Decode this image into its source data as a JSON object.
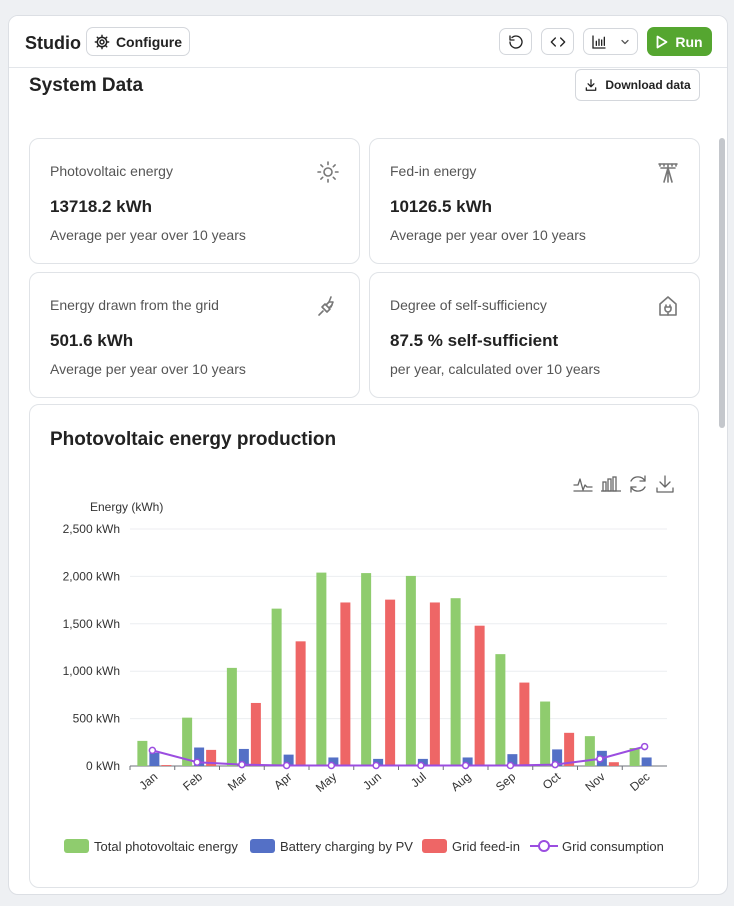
{
  "topbar": {
    "title": "Studio",
    "configure_label": "Configure",
    "run_label": "Run",
    "icons": {
      "configure": "gear-icon",
      "reset": "refresh-icon",
      "code": "code-icon",
      "chart": "bar-chart-icon",
      "dropdown": "chevron-down-icon",
      "run": "play-icon"
    }
  },
  "section": {
    "title": "System Data",
    "download_label": "Download data"
  },
  "cards": [
    {
      "label": "Photovoltaic energy",
      "value": "13718.2 kWh",
      "sub": "Average per year over 10 years",
      "icon": "sun-icon"
    },
    {
      "label": "Fed-in energy",
      "value": "10126.5 kWh",
      "sub": "Average per year over 10 years",
      "icon": "power-pole-icon"
    },
    {
      "label": "Energy drawn from the grid",
      "value": "501.6 kWh",
      "sub": "Average per year over 10 years",
      "icon": "plug-icon"
    },
    {
      "label": "Degree of self-sufficiency",
      "value": "87.5 % self-sufficient",
      "sub": "per year, calculated over 10 years",
      "icon": "house-plug-icon"
    }
  ],
  "colors": {
    "accent": "#55a630",
    "pv": "#8fcc6e",
    "battery": "#5470c6",
    "feedin": "#ee6666",
    "grid": "#9b4de0"
  },
  "chart_data": {
    "type": "bar",
    "title": "Photovoltaic energy production",
    "ylabel": "Energy (kWh)",
    "xlabel": "",
    "ylim": [
      0,
      2500
    ],
    "yticks": [
      0,
      500,
      1000,
      1500,
      2000,
      2500
    ],
    "ytick_labels": [
      "0 kWh",
      "500 kWh",
      "1,000 kWh",
      "1,500 kWh",
      "2,000 kWh",
      "2,500 kWh"
    ],
    "categories": [
      "Jan",
      "Feb",
      "Mar",
      "Apr",
      "May",
      "Jun",
      "Jul",
      "Aug",
      "Sep",
      "Oct",
      "Nov",
      "Dec"
    ],
    "grid": true,
    "legend_position": "bottom",
    "series": [
      {
        "name": "Total photovoltaic energy",
        "kind": "bar",
        "color": "#8fcc6e",
        "values": [
          265,
          510,
          1035,
          1660,
          2040,
          2035,
          2005,
          1770,
          1180,
          680,
          315,
          190
        ]
      },
      {
        "name": "Battery charging by PV",
        "kind": "bar",
        "color": "#5470c6",
        "values": [
          140,
          195,
          180,
          120,
          90,
          75,
          75,
          90,
          125,
          175,
          160,
          90
        ]
      },
      {
        "name": "Grid feed-in",
        "kind": "bar",
        "color": "#ee6666",
        "values": [
          10,
          170,
          665,
          1315,
          1725,
          1755,
          1725,
          1480,
          880,
          350,
          40,
          0
        ]
      },
      {
        "name": "Grid consumption",
        "kind": "line",
        "color": "#9b4de0",
        "values": [
          165,
          40,
          15,
          5,
          5,
          5,
          5,
          5,
          5,
          15,
          75,
          205
        ]
      }
    ],
    "toolbox": [
      "line-view-icon",
      "bar-view-icon",
      "restore-icon",
      "save-image-icon"
    ]
  }
}
